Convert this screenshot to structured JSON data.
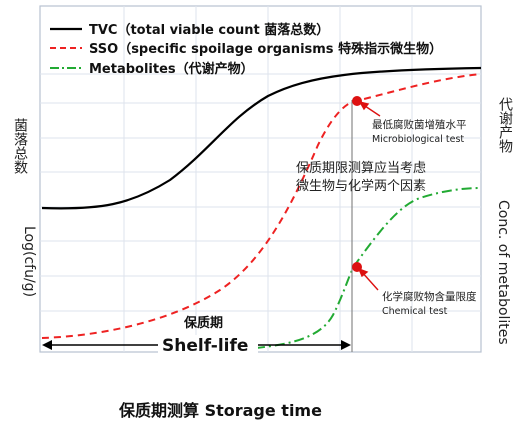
{
  "legend": [
    {
      "label": "TVC（total viable count 菌落总数）",
      "color": "#000000",
      "dash": "solid"
    },
    {
      "label": "SSO（specific spoilage organisms 特殊指示微生物）",
      "color": "#ee2222",
      "dash": "dashed"
    },
    {
      "label": "Metabolites（代谢产物）",
      "color": "#22aa33",
      "dash": "dashdot"
    }
  ],
  "annotations": {
    "micro_cn": "最低腐败菌增殖水平",
    "micro_en": "Microbiological test",
    "chem_cn": "化学腐败物含量限度",
    "chem_en": "Chemical test",
    "note_line1": "保质期限测算应当考虑",
    "note_line2": "微生物与化学两个因素"
  },
  "shelf_life": {
    "cn": "保质期",
    "en": "Shelf-life"
  },
  "xlabel": "保质期测算  Storage time",
  "ylabel_left_cn": "菌落总数",
  "ylabel_left_en": "Log(cfu/g)",
  "ylabel_right_cn": "代谢产物",
  "ylabel_right_en": "Conc. of metabolites",
  "colors": {
    "tvc": "#000000",
    "sso": "#ee2222",
    "metabolites": "#22aa33",
    "marker": "#dd1111",
    "grid": "#dde3ec",
    "axis": "#b8c2d0"
  }
}
